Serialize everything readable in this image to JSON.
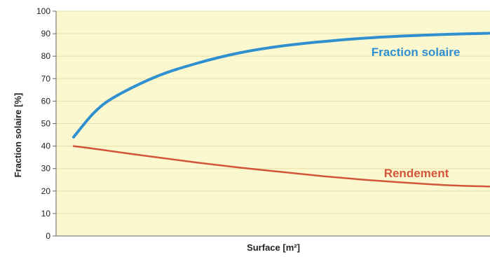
{
  "chart_data": {
    "type": "line",
    "title": "",
    "xlabel": "Surface [m²]",
    "ylabel": "Fraction solaire [%]",
    "ylim": [
      0,
      100
    ],
    "yticks": [
      0,
      10,
      20,
      30,
      40,
      50,
      60,
      70,
      80,
      90,
      100
    ],
    "xlim": [
      0,
      1
    ],
    "grid": true,
    "x": [
      0.0,
      0.05,
      0.1,
      0.2,
      0.3,
      0.4,
      0.5,
      0.6,
      0.7,
      0.8,
      0.9,
      1.0
    ],
    "series": [
      {
        "name": "Fraction solaire",
        "color": "#2f8fcf",
        "values": [
          44,
          55,
          62,
          71,
          77,
          81.5,
          84.5,
          86.5,
          88,
          89,
          89.7,
          90.2
        ]
      },
      {
        "name": "Rendement",
        "color": "#d2553a",
        "values": [
          40,
          38.8,
          37.5,
          35,
          32.6,
          30.4,
          28.5,
          26.6,
          25,
          23.7,
          22.6,
          22
        ]
      }
    ]
  }
}
